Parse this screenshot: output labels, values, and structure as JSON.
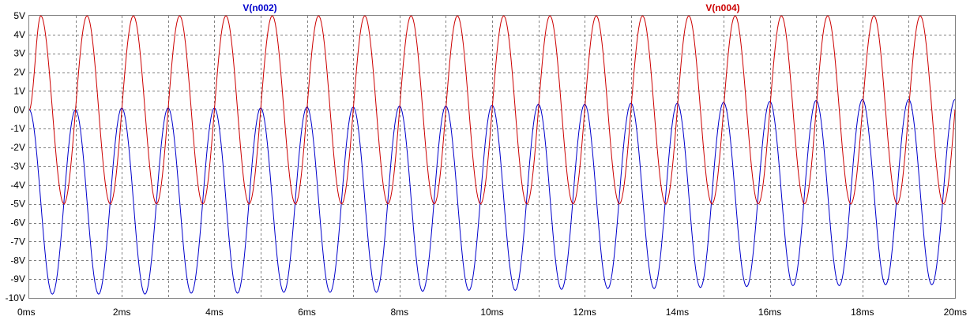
{
  "chart_data": {
    "type": "line",
    "title": "",
    "xlabel": "",
    "ylabel": "",
    "xlim": [
      0,
      20
    ],
    "ylim": [
      -10,
      5
    ],
    "x_unit": "ms",
    "y_unit": "V",
    "grid": true,
    "x_ticks": [
      "0ms",
      "2ms",
      "4ms",
      "6ms",
      "8ms",
      "10ms",
      "12ms",
      "14ms",
      "16ms",
      "18ms",
      "20ms"
    ],
    "y_ticks": [
      "5V",
      "4V",
      "3V",
      "2V",
      "1V",
      "0V",
      "-1V",
      "-2V",
      "-3V",
      "-4V",
      "-5V",
      "-6V",
      "-7V",
      "-8V",
      "-9V",
      "-10V"
    ],
    "series": [
      {
        "name": "V(n002)",
        "color": "#0000cc",
        "frequency_hz": 1000,
        "x": [
          0,
          0.5,
          1,
          1.5,
          2,
          2.5,
          3,
          3.5,
          4,
          4.5,
          5,
          5.5,
          6,
          6.5,
          7,
          7.5,
          8,
          8.5,
          9,
          9.5,
          10,
          10.5,
          11,
          11.5,
          12,
          12.5,
          13,
          13.5,
          14,
          14.5,
          15,
          15.5,
          16,
          16.5,
          17,
          17.5,
          18,
          18.5,
          19,
          19.5
        ],
        "y": [
          0.0,
          -9.8,
          0.0,
          -9.8,
          0.1,
          -9.8,
          0.1,
          -9.75,
          0.1,
          -9.75,
          0.1,
          -9.7,
          0.15,
          -9.7,
          0.15,
          -9.7,
          0.2,
          -9.65,
          0.2,
          -9.6,
          0.25,
          -9.6,
          0.3,
          -9.55,
          0.3,
          -9.5,
          0.35,
          -9.5,
          0.35,
          -9.45,
          0.4,
          -9.4,
          0.45,
          -9.35,
          0.5,
          -9.35,
          0.55,
          -9.3,
          0.55,
          -9.3
        ]
      },
      {
        "name": "V(n004)",
        "color": "#cc0000",
        "frequency_hz": 1000,
        "x": [
          0.25,
          0.75,
          1.25,
          1.75,
          2.25,
          2.75,
          3.25,
          3.75,
          4.25,
          4.75,
          5.25,
          5.75,
          6.25,
          6.75,
          7.25,
          7.75,
          8.25,
          8.75,
          9.25,
          9.75,
          10.25,
          10.75,
          11.25,
          11.75,
          12.25,
          12.75,
          13.25,
          13.75,
          14.25,
          14.75,
          15.25,
          15.75,
          16.25,
          16.75,
          17.25,
          17.75,
          18.25,
          18.75,
          19.25,
          19.75
        ],
        "y": [
          5,
          -5,
          5,
          -5,
          5,
          -5,
          5,
          -5,
          5,
          -5,
          5,
          -5,
          5,
          -5,
          5,
          -5,
          5,
          -5,
          5,
          -5,
          5,
          -5,
          5,
          -5,
          5,
          -5,
          5,
          -5,
          5,
          -5,
          5,
          -5,
          5,
          -5,
          5,
          -5,
          5,
          -5,
          5,
          -5
        ]
      }
    ]
  }
}
